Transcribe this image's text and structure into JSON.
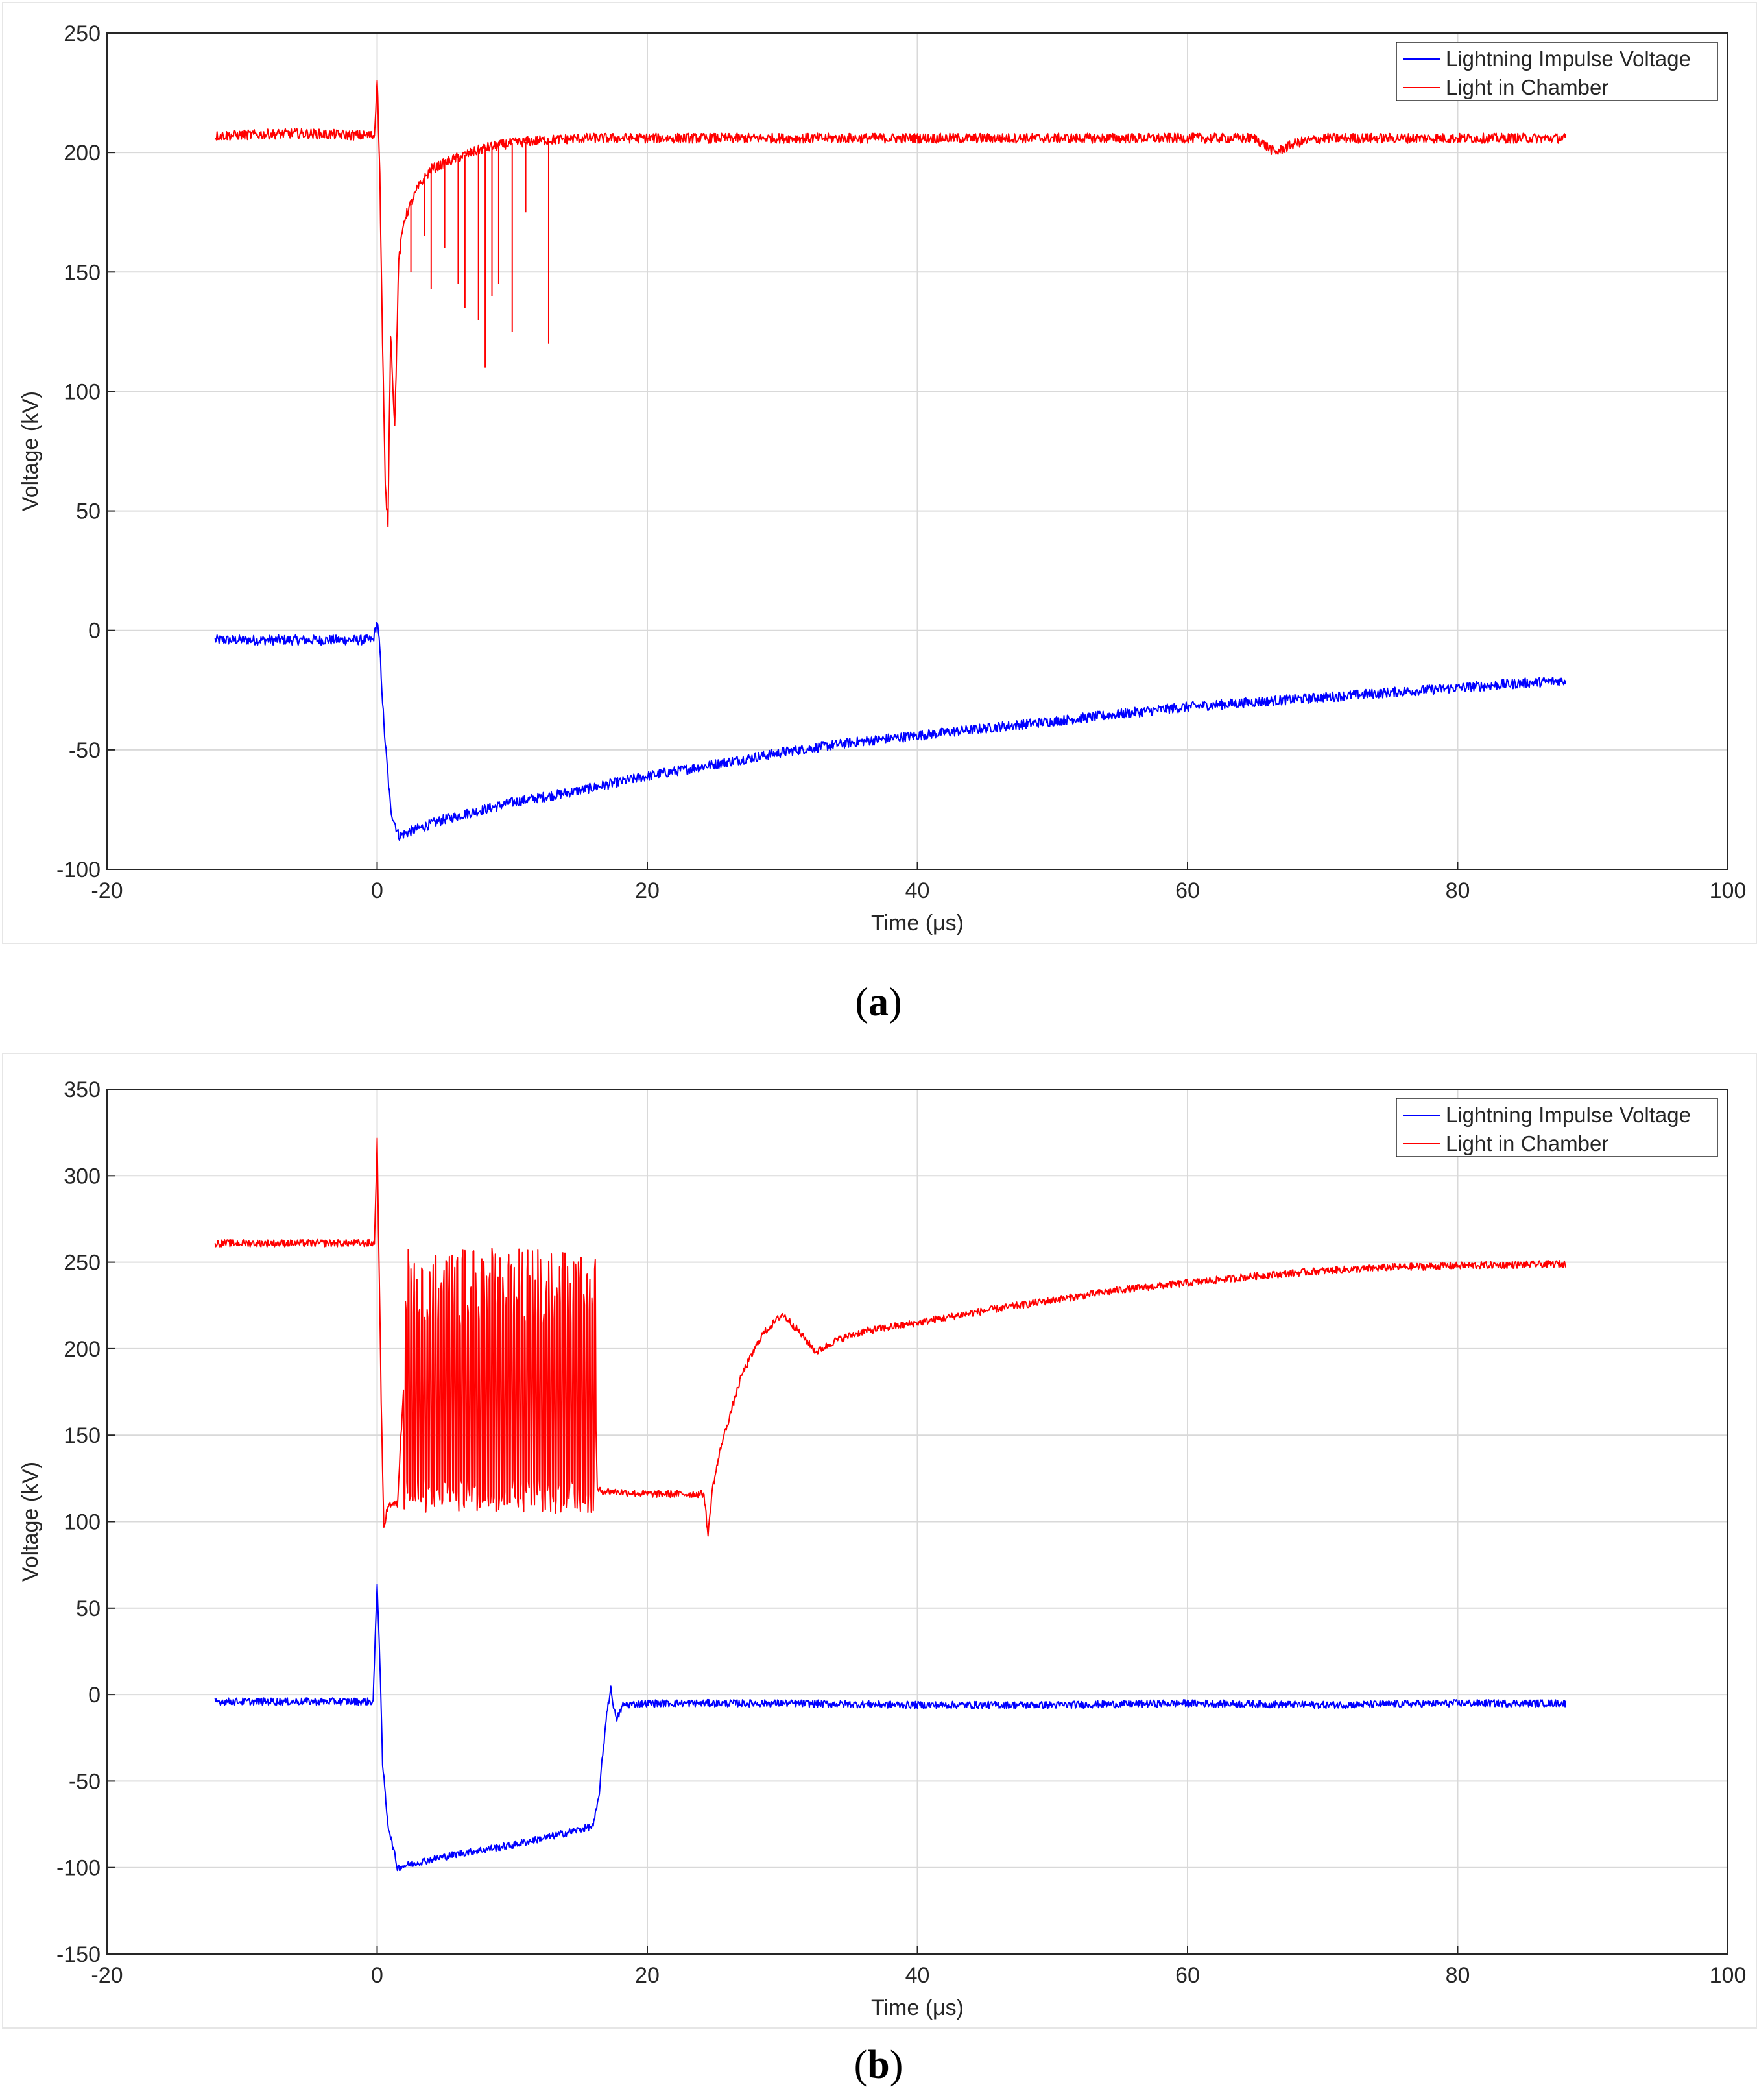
{
  "chart_data": [
    {
      "type": "line",
      "panel_label": "a",
      "xlabel": "Time (μs)",
      "ylabel": "Voltage (kV)",
      "xlim": [
        -20,
        100
      ],
      "ylim": [
        -100,
        250
      ],
      "xticks": [
        -20,
        0,
        20,
        40,
        60,
        80,
        100
      ],
      "yticks": [
        -100,
        -50,
        0,
        50,
        100,
        150,
        200,
        250
      ],
      "grid": true,
      "legend": "top-right",
      "series": [
        {
          "name": "Lightning Impulse Voltage",
          "color": "#0000ff",
          "points": [
            [
              -12,
              -4
            ],
            [
              -6,
              -4
            ],
            [
              -0.3,
              -4
            ],
            [
              0,
              4
            ],
            [
              0.2,
              -8
            ],
            [
              0.5,
              -40
            ],
            [
              1,
              -75
            ],
            [
              1.6,
              -86
            ],
            [
              3,
              -83
            ],
            [
              5,
              -79
            ],
            [
              10,
              -72
            ],
            [
              15,
              -67
            ],
            [
              20,
              -61
            ],
            [
              25,
              -56
            ],
            [
              30,
              -51
            ],
            [
              35,
              -47
            ],
            [
              40,
              -44
            ],
            [
              45,
              -41
            ],
            [
              50,
              -38
            ],
            [
              55,
              -35
            ],
            [
              60,
              -32
            ],
            [
              65,
              -30
            ],
            [
              70,
              -28
            ],
            [
              75,
              -26
            ],
            [
              80,
              -24
            ],
            [
              85,
              -22
            ],
            [
              88,
              -21
            ]
          ]
        },
        {
          "name": "Light  in Chamber",
          "color": "#ff0000",
          "points": [
            [
              -12,
              207
            ],
            [
              -6,
              208
            ],
            [
              -0.2,
              207
            ],
            [
              0,
              232
            ],
            [
              0.2,
              190
            ],
            [
              0.4,
              120
            ],
            [
              0.6,
              60
            ],
            [
              0.8,
              45
            ],
            [
              1,
              125
            ],
            [
              1.3,
              85
            ],
            [
              1.6,
              155
            ],
            [
              2,
              172
            ],
            [
              3,
              185
            ],
            [
              4,
              193
            ],
            [
              6,
              198
            ],
            [
              8,
              202
            ],
            [
              10,
              204
            ],
            [
              12,
              205
            ],
            [
              15,
              206
            ],
            [
              20,
              206
            ],
            [
              30,
              206
            ],
            [
              40,
              206
            ],
            [
              50,
              206
            ],
            [
              60,
              206
            ],
            [
              65,
              206
            ],
            [
              66.5,
              200
            ],
            [
              68,
              204
            ],
            [
              70,
              206
            ],
            [
              80,
              206
            ],
            [
              88,
              206
            ]
          ],
          "spikes": [
            [
              2.5,
              150
            ],
            [
              3.5,
              165
            ],
            [
              4,
              143
            ],
            [
              5,
              160
            ],
            [
              6,
              145
            ],
            [
              6.5,
              135
            ],
            [
              7.5,
              130
            ],
            [
              8,
              110
            ],
            [
              8.5,
              140
            ],
            [
              9,
              145
            ],
            [
              10,
              125
            ],
            [
              11,
              175
            ],
            [
              12.7,
              120
            ]
          ]
        }
      ]
    },
    {
      "type": "line",
      "panel_label": "b",
      "xlabel": "Time (μs)",
      "ylabel": "Voltage (kV)",
      "xlim": [
        -20,
        100
      ],
      "ylim": [
        -150,
        350
      ],
      "xticks": [
        -20,
        0,
        20,
        40,
        60,
        80,
        100
      ],
      "yticks": [
        -150,
        -100,
        -50,
        0,
        50,
        100,
        150,
        200,
        250,
        300,
        350
      ],
      "grid": true,
      "legend": "top-right",
      "series": [
        {
          "name": "Lightning Impulse Voltage",
          "color": "#0000ff",
          "points": [
            [
              -12,
              -4
            ],
            [
              -6,
              -4
            ],
            [
              -0.3,
              -4
            ],
            [
              0,
              65
            ],
            [
              0.2,
              20
            ],
            [
              0.4,
              -40
            ],
            [
              0.8,
              -75
            ],
            [
              1.5,
              -100
            ],
            [
              3,
              -97
            ],
            [
              6,
              -92
            ],
            [
              10,
              -87
            ],
            [
              14,
              -80
            ],
            [
              16,
              -76
            ],
            [
              16.4,
              -60
            ],
            [
              17,
              -10
            ],
            [
              17.3,
              3
            ],
            [
              17.7,
              -15
            ],
            [
              18.2,
              -6
            ],
            [
              20,
              -5
            ],
            [
              30,
              -5
            ],
            [
              40,
              -6
            ],
            [
              50,
              -6
            ],
            [
              60,
              -5
            ],
            [
              70,
              -6
            ],
            [
              80,
              -5
            ],
            [
              88,
              -5
            ]
          ]
        },
        {
          "name": "Light  in Chamber",
          "color": "#ff0000",
          "points": [
            [
              -12,
              261
            ],
            [
              -6,
              261
            ],
            [
              -0.2,
              261
            ],
            [
              0,
              320
            ],
            [
              0.3,
              170
            ],
            [
              0.5,
              95
            ],
            [
              0.8,
              110
            ],
            [
              1.5,
              110
            ],
            [
              2,
              185
            ],
            [
              3,
              210
            ],
            [
              5,
              225
            ],
            [
              16,
              225
            ],
            [
              16.3,
              118
            ],
            [
              20,
              116
            ],
            [
              24.2,
              116
            ],
            [
              24.5,
              92
            ],
            [
              24.8,
              118
            ],
            [
              25.5,
              145
            ],
            [
              27,
              185
            ],
            [
              28.5,
              208
            ],
            [
              30,
              220
            ],
            [
              31,
              212
            ],
            [
              32.5,
              198
            ],
            [
              34,
              205
            ],
            [
              36,
              210
            ],
            [
              40,
              215
            ],
            [
              45,
              222
            ],
            [
              50,
              228
            ],
            [
              55,
              234
            ],
            [
              60,
              238
            ],
            [
              65,
              242
            ],
            [
              70,
              245
            ],
            [
              75,
              247
            ],
            [
              80,
              248
            ],
            [
              88,
              249
            ]
          ],
          "oscillation": {
            "from": 2,
            "to": 16.2,
            "low": 105,
            "high": 258
          }
        }
      ]
    }
  ],
  "captions": {
    "a": {
      "open": "(",
      "letter": "a",
      "close": ")"
    },
    "b": {
      "open": "(",
      "letter": "b",
      "close": ")"
    }
  }
}
